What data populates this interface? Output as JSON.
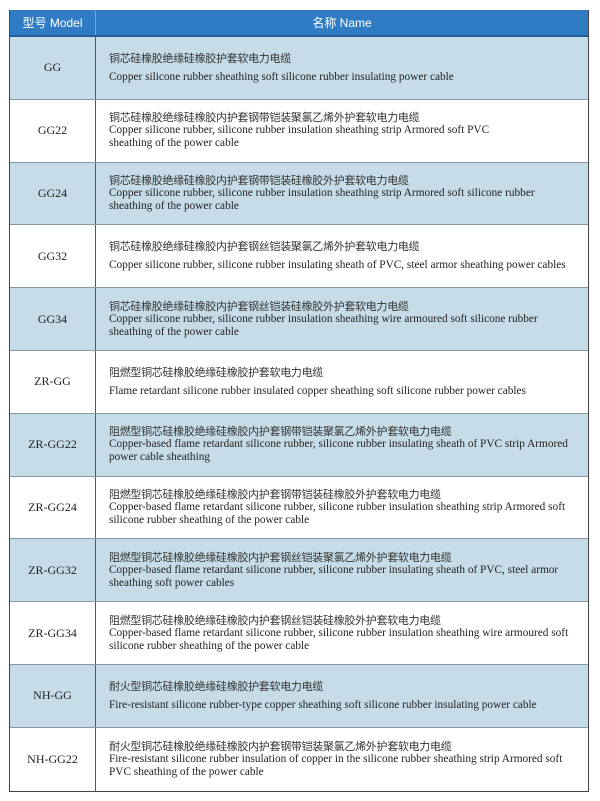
{
  "header": {
    "model": "型号 Model",
    "name": "名称  Name"
  },
  "rows": [
    {
      "model": "GG",
      "zh": "铜芯硅橡胶绝缘硅橡胶护套软电力电缆",
      "en": [
        "Copper silicone rubber sheathing soft silicone rubber insulating power cable"
      ]
    },
    {
      "model": "GG22",
      "zh": "铜芯硅橡胶绝缘硅橡胶内护套钢带铠装聚氯乙烯外护套软电力电缆",
      "en": [
        "Copper silicone rubber, silicone rubber insulation sheathing strip Armored soft PVC",
        "sheathing of the power cable"
      ]
    },
    {
      "model": "GG24",
      "zh": "铜芯硅橡胶绝缘硅橡胶内护套钢带铠装硅橡胶外护套软电力电缆",
      "en": [
        "Copper silicone rubber, silicone rubber insulation sheathing strip Armored soft silicone rubber",
        "sheathing of the power cable"
      ]
    },
    {
      "model": "GG32",
      "zh": "铜芯硅橡胶绝缘硅橡胶内护套钢丝铠装聚氯乙烯外护套软电力电缆",
      "en": [
        "Copper silicone rubber, silicone rubber insulating sheath of PVC, steel armor sheathing power cables"
      ]
    },
    {
      "model": "GG34",
      "zh": "铜芯硅橡胶绝缘硅橡胶内护套钢丝铠装硅橡胶外护套软电力电缆",
      "en": [
        "Copper silicone rubber, silicone rubber insulation sheathing wire armoured soft silicone rubber",
        "sheathing of the power cable"
      ]
    },
    {
      "model": "ZR-GG",
      "zh": "阻燃型铜芯硅橡胶绝缘硅橡胶护套软电力电缆",
      "en": [
        "Flame retardant silicone rubber insulated copper sheathing soft silicone rubber power cables"
      ]
    },
    {
      "model": "ZR-GG22",
      "zh": "阻燃型铜芯硅橡胶绝缘硅橡胶内护套钢带铠装聚氯乙烯外护套软电力电缆",
      "en": [
        "Copper-based flame retardant silicone rubber, silicone rubber insulating sheath of PVC strip Armored",
        "power cable sheathing"
      ]
    },
    {
      "model": "ZR-GG24",
      "zh": "阻燃型铜芯硅橡胶绝缘硅橡胶内护套钢带铠装硅橡胶外护套软电力电缆",
      "en": [
        "Copper-based flame retardant silicone rubber, silicone rubber insulation sheathing strip Armored soft",
        "silicone rubber sheathing of the power cable"
      ]
    },
    {
      "model": "ZR-GG32",
      "zh": "阻燃型铜芯硅橡胶绝缘硅橡胶内护套钢丝铠装聚氯乙烯外护套软电力电缆",
      "en": [
        "Copper-based flame retardant silicone rubber, silicone rubber insulating sheath of PVC, steel armor",
        "sheathing soft power cables"
      ]
    },
    {
      "model": "ZR-GG34",
      "zh": "阻燃型铜芯硅橡胶绝缘硅橡胶内护套钢丝铠装硅橡胶外护套软电力电缆",
      "en": [
        "Copper-based flame retardant silicone rubber, silicone rubber insulation sheathing wire armoured soft",
        "silicone rubber sheathing of the power cable"
      ]
    },
    {
      "model": "NH-GG",
      "zh": "耐火型铜芯硅橡胶绝缘硅橡胶护套软电力电缆",
      "en": [
        "Fire-resistant silicone rubber-type copper sheathing soft silicone rubber insulating power cable"
      ]
    },
    {
      "model": "NH-GG22",
      "zh": "耐火型铜芯硅橡胶绝缘硅橡胶内护套钢带铠装聚氯乙烯外护套软电力电缆",
      "en": [
        "Fire-resistant silicone rubber insulation of copper in the silicone rubber sheathing strip Armored soft",
        "PVC sheathing of the power cable"
      ]
    }
  ],
  "colors": {
    "header": "#2f7cc4",
    "row_alt": "#c6dde9"
  }
}
